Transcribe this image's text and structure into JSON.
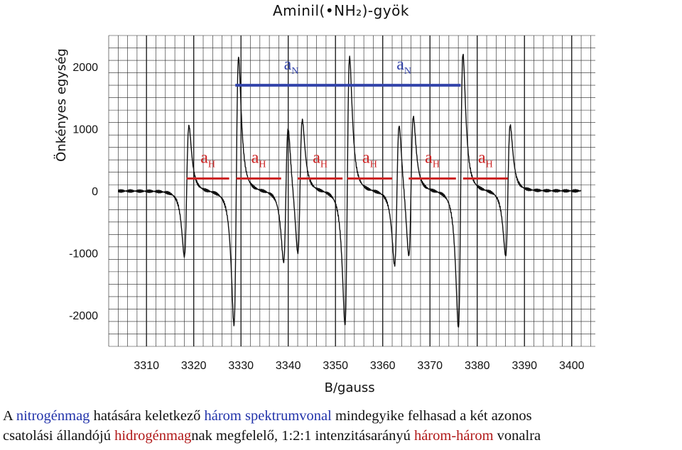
{
  "title": "Aminil(•NH₂)-gyök",
  "colors": {
    "nitrogen": "#3344aa",
    "hydrogen": "#cc2222",
    "trace": "#111111",
    "grid": "#222222"
  },
  "chart_data": {
    "type": "line",
    "title": "Aminil(•NH₂)-gyök",
    "xlabel": "B/gauss",
    "ylabel": "Önkényes egység",
    "xlim": [
      3302,
      3405
    ],
    "ylim": [
      -2500,
      2500
    ],
    "x_ticks": [
      "3310",
      "3320",
      "3330",
      "3340",
      "3350",
      "3360",
      "3370",
      "3380",
      "3390",
      "3400"
    ],
    "y_ticks": [
      "2000",
      "1000",
      "0",
      "-1000",
      "-2000"
    ],
    "grid": true,
    "series": [
      {
        "lines": [
          {
            "center": 3318.5,
            "amplitude": 1050
          },
          {
            "center": 3329.0,
            "amplitude": 2150
          },
          {
            "center": 3339.5,
            "amplitude": 1100
          },
          {
            "center": 3342.5,
            "amplitude": 1100
          },
          {
            "center": 3352.5,
            "amplitude": 2150
          },
          {
            "center": 3363.0,
            "amplitude": 1150
          },
          {
            "center": 3366.0,
            "amplitude": 1150
          },
          {
            "center": 3376.5,
            "amplitude": 2200
          },
          {
            "center": 3386.5,
            "amplitude": 1050
          }
        ]
      }
    ],
    "annotations": {
      "nitrogen_label": "a",
      "nitrogen_sub": "N",
      "hydrogen_label": "a",
      "hydrogen_sub": "H",
      "nitrogen_couplings": [
        {
          "from": 3328.8,
          "to": 3352.5,
          "y": 1700
        },
        {
          "from": 3352.5,
          "to": 3376.5,
          "y": 1700
        }
      ],
      "hydrogen_couplings": [
        {
          "from": 3318.5,
          "to": 3327.5,
          "y": 200
        },
        {
          "from": 3329.0,
          "to": 3338.5,
          "y": 200
        },
        {
          "from": 3342.0,
          "to": 3351.5,
          "y": 200
        },
        {
          "from": 3352.5,
          "to": 3362.0,
          "y": 200
        },
        {
          "from": 3365.5,
          "to": 3375.5,
          "y": 200
        },
        {
          "from": 3377.0,
          "to": 3386.5,
          "y": 200
        }
      ]
    }
  },
  "caption": {
    "line1": [
      {
        "text": "A ",
        "color": ""
      },
      {
        "text": "nitrogénmag",
        "color": "blue"
      },
      {
        "text": " hatására keletkező ",
        "color": ""
      },
      {
        "text": "három spektrumvonal",
        "color": "blue"
      },
      {
        "text": " mindegyike felhasad a két azonos",
        "color": ""
      }
    ],
    "line2": [
      {
        "text": "csatolási állandójú ",
        "color": ""
      },
      {
        "text": "hidrogénmag",
        "color": "red"
      },
      {
        "text": "nak megfelelő, 1:2:1 intenzitásarányú ",
        "color": ""
      },
      {
        "text": "három-három",
        "color": "red"
      },
      {
        "text": " vonalra",
        "color": ""
      }
    ]
  }
}
